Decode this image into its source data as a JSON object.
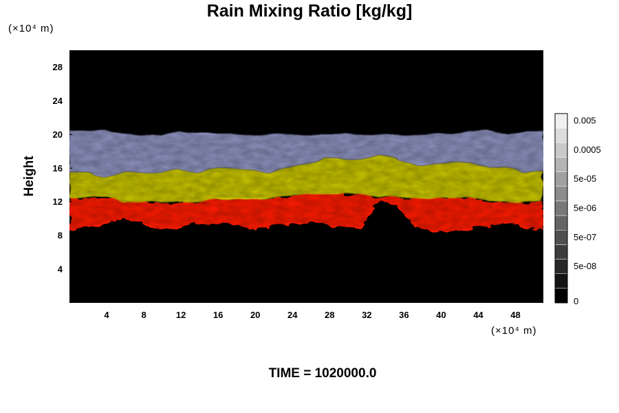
{
  "chart_data": {
    "type": "heatmap",
    "title": "Rain Mixing Ratio [kg/kg]",
    "ylabel": "Height",
    "xlabel": "",
    "x_unit": "(×10⁴ m)",
    "y_unit": "(×10⁴ m)",
    "x_ticks": [
      4,
      8,
      12,
      16,
      20,
      24,
      28,
      32,
      36,
      40,
      44,
      48
    ],
    "y_ticks": [
      4,
      8,
      12,
      16,
      20,
      24,
      28
    ],
    "xlim": [
      0,
      51
    ],
    "ylim": [
      0,
      30
    ],
    "colorbar": {
      "labels": [
        "0",
        "5e-08",
        "5e-07",
        "5e-06",
        "5e-05",
        "0.0005",
        "0.005"
      ],
      "levels": 13
    },
    "layers": [
      {
        "color": "#ff1a00",
        "bottom": [
          8.5,
          9.0,
          9.5,
          10.0,
          9.5,
          8.7,
          9.0,
          9.2,
          9.5,
          9.2,
          8.8,
          9.0,
          9.5,
          9.5,
          9.2,
          9.0,
          9.0,
          12.0,
          11.5,
          9.0,
          8.5,
          8.5,
          8.8,
          9.0,
          9.5,
          9.0,
          8.5
        ],
        "top": [
          12.5,
          12.5,
          12.5,
          12.0,
          12.0,
          12.0,
          12.0,
          12.0,
          12.5,
          12.5,
          12.5,
          12.5,
          12.5,
          13.0,
          13.0,
          13.0,
          13.0,
          12.5,
          12.5,
          12.5,
          12.5,
          12.5,
          12.5,
          12.0,
          12.0,
          12.0,
          12.0
        ]
      },
      {
        "color": "#c8c400",
        "bottom": [
          12.5,
          12.5,
          12.5,
          12.0,
          12.0,
          12.0,
          12.0,
          12.0,
          12.5,
          12.5,
          12.5,
          12.5,
          12.5,
          13.0,
          13.0,
          13.0,
          13.0,
          12.5,
          12.5,
          12.5,
          12.5,
          12.5,
          12.5,
          12.0,
          12.0,
          12.0,
          12.0
        ],
        "top": [
          15.5,
          15.5,
          15.0,
          15.5,
          15.5,
          15.5,
          16.0,
          15.5,
          16.0,
          16.0,
          16.0,
          15.5,
          16.0,
          16.5,
          17.0,
          17.0,
          17.0,
          17.5,
          17.0,
          16.5,
          16.5,
          16.5,
          16.5,
          16.0,
          16.0,
          15.5,
          15.5
        ]
      },
      {
        "color": "#8d92bf",
        "bottom": [
          15.5,
          15.5,
          15.0,
          15.5,
          15.5,
          15.5,
          16.0,
          15.5,
          16.0,
          16.0,
          16.0,
          15.5,
          16.0,
          16.5,
          17.0,
          17.0,
          17.0,
          17.5,
          17.0,
          16.5,
          16.5,
          16.5,
          16.5,
          16.0,
          16.0,
          15.5,
          15.5
        ],
        "top": [
          20.5,
          20.5,
          20.5,
          20.0,
          20.0,
          20.0,
          20.5,
          20.0,
          20.0,
          20.0,
          20.0,
          20.0,
          20.0,
          20.0,
          20.0,
          20.0,
          20.0,
          20.0,
          20.0,
          20.0,
          20.0,
          20.0,
          20.5,
          20.5,
          20.0,
          20.5,
          20.5
        ]
      }
    ],
    "background": "#000000",
    "grid": false
  },
  "footer": {
    "time_label": "TIME = 1020000.0"
  }
}
